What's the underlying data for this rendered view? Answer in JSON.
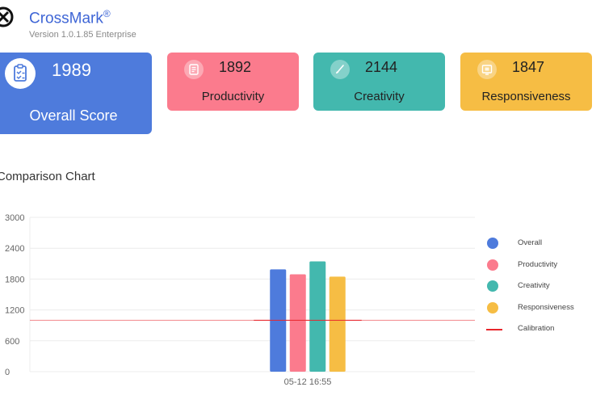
{
  "header": {
    "app_name": "CrossMark",
    "app_mark": "®",
    "version": "Version 1.0.1.85 Enterprise",
    "logo_icon": "crossmark-logo-icon"
  },
  "scores": {
    "overall": {
      "value": "1989",
      "label": "Overall Score",
      "color": "#4e7bdc",
      "icon": "clipboard-check-icon"
    },
    "productivity": {
      "value": "1892",
      "label": "Productivity",
      "color": "#fb7b8d",
      "icon": "document-icon"
    },
    "creativity": {
      "value": "2144",
      "label": "Creativity",
      "color": "#43b8ae",
      "icon": "brush-icon"
    },
    "responsiveness": {
      "value": "1847",
      "label": "Responsiveness",
      "color": "#f6bd44",
      "icon": "screen-icon"
    }
  },
  "chart_section": {
    "title": "Comparison Chart"
  },
  "chart_data": {
    "type": "bar",
    "categories": [
      "05-12 16:55"
    ],
    "series": [
      {
        "name": "Overall",
        "values": [
          1989
        ],
        "color": "#4e7bdc"
      },
      {
        "name": "Productivity",
        "values": [
          1892
        ],
        "color": "#fb7b8d"
      },
      {
        "name": "Creativity",
        "values": [
          2144
        ],
        "color": "#43b8ae"
      },
      {
        "name": "Responsiveness",
        "values": [
          1847
        ],
        "color": "#f6bd44"
      }
    ],
    "reference_line": {
      "name": "Calibration",
      "value": 1000,
      "color": "#e8262c"
    },
    "ylim": [
      0,
      3000
    ],
    "yticks": [
      "0",
      "600",
      "1200",
      "1800",
      "2400",
      "3000"
    ],
    "grid": true,
    "legend_position": "right"
  }
}
